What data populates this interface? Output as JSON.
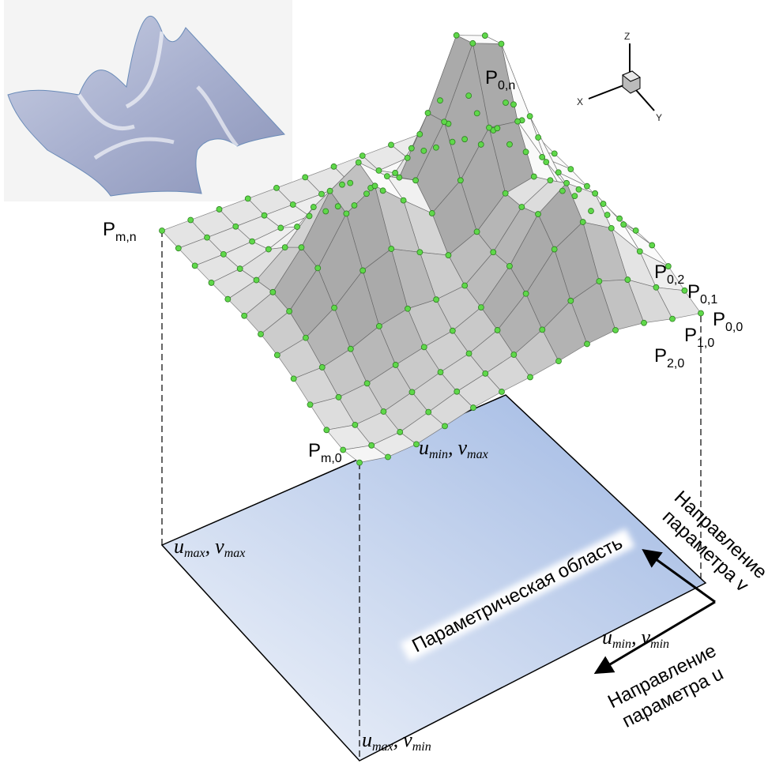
{
  "axes": {
    "x": "X",
    "y": "Y",
    "z": "Z"
  },
  "control_points": [
    {
      "base": "P",
      "sub": "m,n"
    },
    {
      "base": "P",
      "sub": "0,n"
    },
    {
      "base": "P",
      "sub": "0,2"
    },
    {
      "base": "P",
      "sub": "0,1"
    },
    {
      "base": "P",
      "sub": "0,0"
    },
    {
      "base": "P",
      "sub": "1,0"
    },
    {
      "base": "P",
      "sub": "2,0"
    },
    {
      "base": "P",
      "sub": "m,0"
    }
  ],
  "domain": {
    "title": "Параметрическая область",
    "corners": [
      {
        "u": "u",
        "u_sub": "min",
        "sep": ",",
        "v": "v",
        "v_sub": "max"
      },
      {
        "u": "u",
        "u_sub": "max",
        "sep": ",",
        "v": "v",
        "v_sub": "max"
      },
      {
        "u": "u",
        "u_sub": "min",
        "sep": ",",
        "v": "v",
        "v_sub": "min"
      },
      {
        "u": "u",
        "u_sub": "max",
        "sep": ",",
        "v": "v",
        "v_sub": "min"
      }
    ]
  },
  "directions": {
    "v": [
      "Направление",
      "параметра v"
    ],
    "u": [
      "Направление",
      "параметра u"
    ]
  }
}
